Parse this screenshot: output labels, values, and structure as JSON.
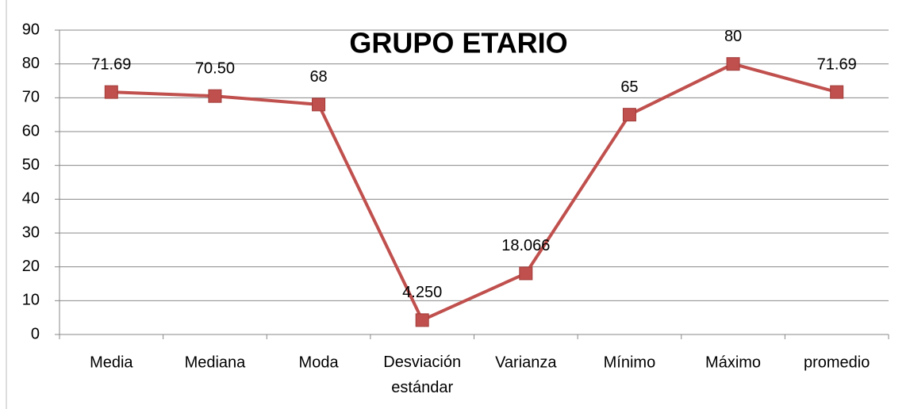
{
  "chart_data": {
    "type": "line",
    "title": "GRUPO ETARIO",
    "categories": [
      "Media",
      "Mediana",
      "Moda",
      "Desviación estándar",
      "Varianza",
      "Mínimo",
      "Máximo",
      "promedio"
    ],
    "series": [
      {
        "name": "GRUPO ETARIO",
        "color": "#c0504d",
        "values": [
          71.69,
          70.5,
          68,
          4.25,
          18.066,
          65,
          80,
          71.69
        ],
        "value_labels": [
          "71.69",
          "70.50",
          "68",
          "4.250",
          "18.066",
          "65",
          "80",
          "71.69"
        ]
      }
    ],
    "ylim": [
      0,
      90
    ],
    "yticks": [
      0,
      10,
      20,
      30,
      40,
      50,
      60,
      70,
      80,
      90
    ],
    "grid": true
  }
}
